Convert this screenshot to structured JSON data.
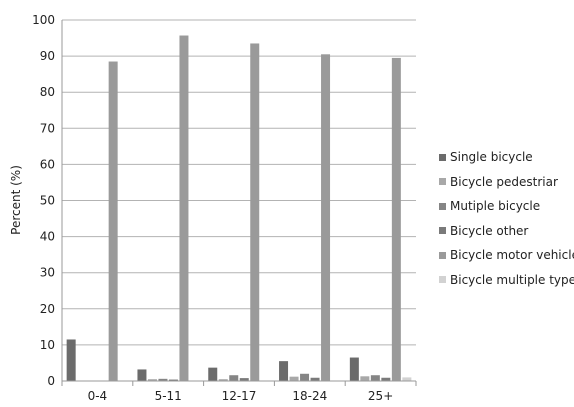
{
  "chart_data": {
    "type": "bar",
    "categories": [
      "0-4",
      "5-11",
      "12-17",
      "18-24",
      "25+"
    ],
    "ylabel": "Percent (%)",
    "ylim": [
      0,
      100
    ],
    "yticks": [
      0,
      10,
      20,
      30,
      40,
      50,
      60,
      70,
      80,
      90,
      100
    ],
    "grid": true,
    "legend_position": "right",
    "series": [
      {
        "name": "Single bicycle",
        "color": "#6b6b6b",
        "values": [
          11.5,
          3.2,
          3.7,
          5.5,
          6.5
        ]
      },
      {
        "name": "Bicycle pedestriar",
        "color": "#a8a8a8",
        "values": [
          0,
          0.5,
          0.5,
          1.2,
          1.3
        ]
      },
      {
        "name": "Mutiple bicycle",
        "color": "#858585",
        "values": [
          0,
          0.6,
          1.6,
          2.0,
          1.6
        ]
      },
      {
        "name": "Bicycle other",
        "color": "#7a7a7a",
        "values": [
          0,
          0.4,
          0.8,
          0.9,
          0.9
        ]
      },
      {
        "name": "Bicycle motor vehicle",
        "color": "#9a9a9a",
        "values": [
          88.5,
          95.7,
          93.5,
          90.5,
          89.5
        ]
      },
      {
        "name": "Bicycle multiple types",
        "color": "#d2d2d2",
        "values": [
          0,
          0,
          0,
          0,
          1.0
        ]
      }
    ]
  }
}
